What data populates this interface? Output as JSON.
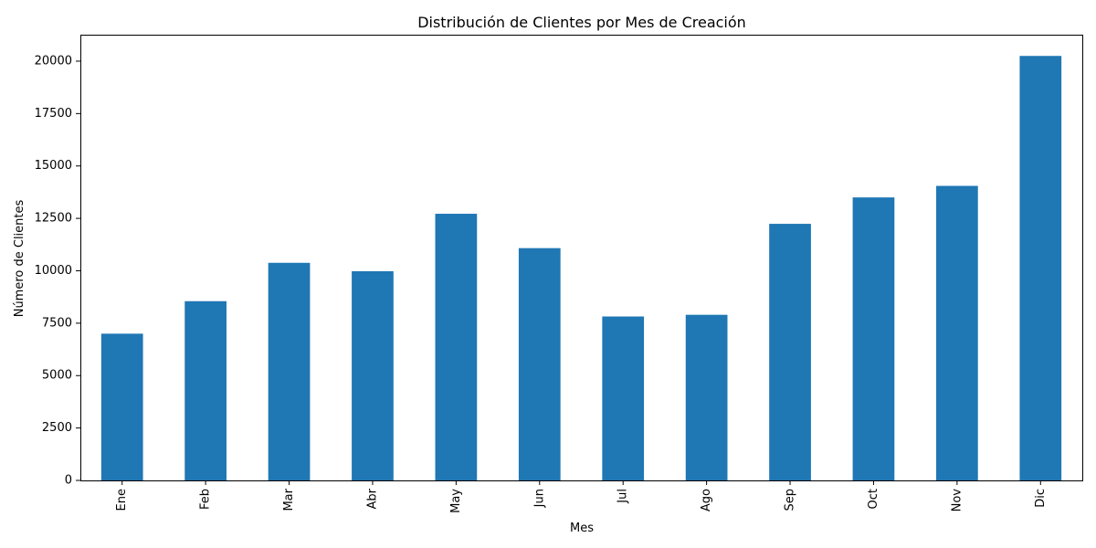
{
  "chart_data": {
    "type": "bar",
    "title": "Distribución de Clientes por Mes de Creación",
    "xlabel": "Mes",
    "ylabel": "Número de Clientes",
    "categories": [
      "Ene",
      "Feb",
      "Mar",
      "Abr",
      "May",
      "Jun",
      "Jul",
      "Ago",
      "Sep",
      "Oct",
      "Nov",
      "Dic"
    ],
    "values": [
      7000,
      8550,
      10380,
      9980,
      12720,
      11080,
      7820,
      7900,
      12240,
      13500,
      14050,
      20250
    ],
    "yticks": [
      0,
      2500,
      5000,
      7500,
      10000,
      12500,
      15000,
      17500,
      20000
    ],
    "ylim": [
      0,
      21262
    ],
    "bar_color": "#1f77b4",
    "grid": false,
    "legend": "none"
  }
}
